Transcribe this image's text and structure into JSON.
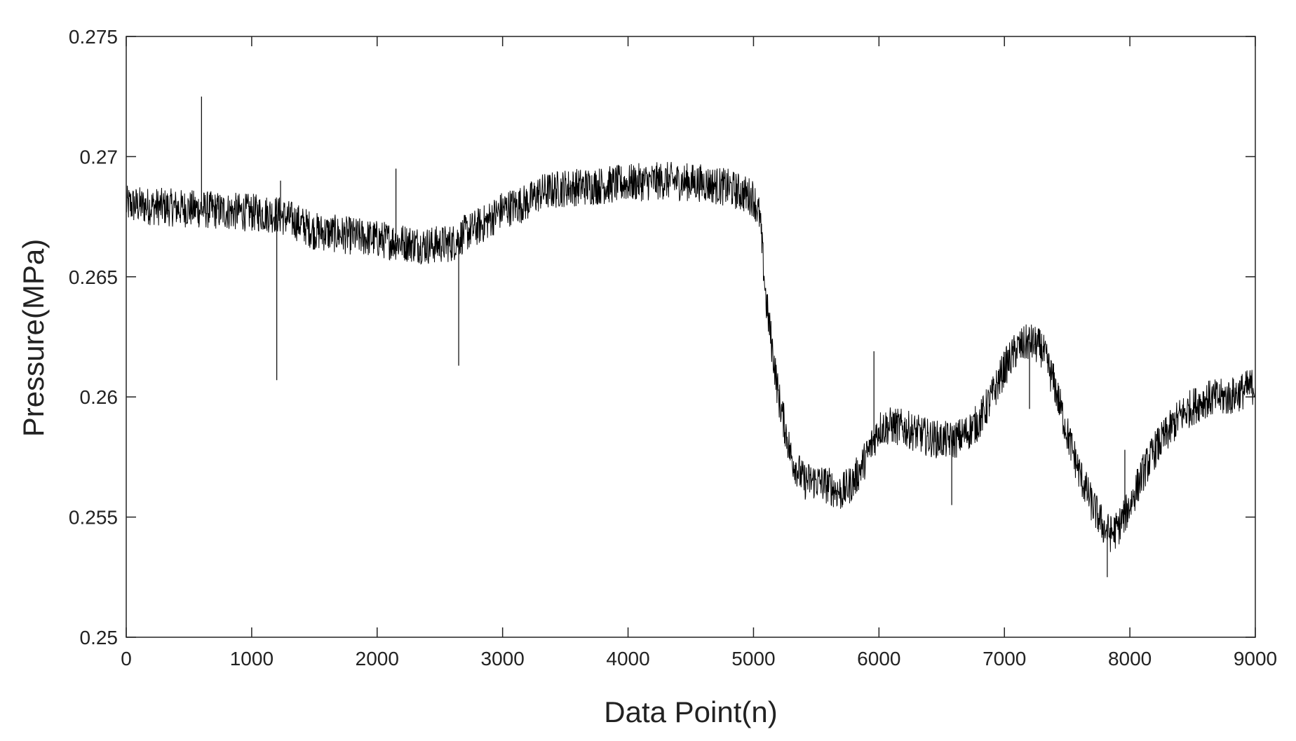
{
  "chart_data": {
    "type": "line",
    "title": "",
    "xlabel": "Data Point(n)",
    "ylabel": "Pressure(MPa)",
    "xlim": [
      0,
      9000
    ],
    "ylim": [
      0.25,
      0.275
    ],
    "x_ticks": [
      0,
      1000,
      2000,
      3000,
      4000,
      5000,
      6000,
      7000,
      8000,
      9000
    ],
    "x_tick_labels": [
      "0",
      "1000",
      "2000",
      "3000",
      "4000",
      "5000",
      "6000",
      "7000",
      "8000",
      "9000"
    ],
    "y_ticks": [
      0.25,
      0.255,
      0.26,
      0.265,
      0.27,
      0.275
    ],
    "y_tick_labels": [
      "0.25",
      "0.255",
      "0.26",
      "0.265",
      "0.27",
      "0.275"
    ],
    "grid": false,
    "legend": "none",
    "line_color": "#000000",
    "series": [
      {
        "x": [
          0,
          300,
          600,
          900,
          1200,
          1350,
          1500,
          1800,
          2100,
          2400,
          2600,
          2700,
          2850,
          3000,
          3200,
          3300,
          3500,
          3800,
          4000,
          4300,
          4600,
          4800,
          5000,
          5050,
          5100,
          5200,
          5300,
          5400,
          5500,
          5600,
          5700,
          5800,
          5900,
          6000,
          6100,
          6200,
          6300,
          6400,
          6500,
          6600,
          6700,
          6800,
          6900,
          7000,
          7100,
          7200,
          7300,
          7400,
          7500,
          7600,
          7700,
          7800,
          7850,
          7900,
          8000,
          8100,
          8200,
          8300,
          8400,
          8500,
          8600,
          8800,
          9000
        ],
        "y": [
          0.268,
          0.2679,
          0.2678,
          0.2677,
          0.2676,
          0.2673,
          0.2669,
          0.2667,
          0.2665,
          0.2663,
          0.2664,
          0.2668,
          0.2672,
          0.2678,
          0.2681,
          0.2685,
          0.2687,
          0.2688,
          0.2689,
          0.269,
          0.2689,
          0.2687,
          0.2683,
          0.2675,
          0.264,
          0.26,
          0.2575,
          0.2565,
          0.2565,
          0.2563,
          0.256,
          0.2565,
          0.2575,
          0.2587,
          0.2588,
          0.2587,
          0.2585,
          0.2583,
          0.2582,
          0.2582,
          0.2585,
          0.259,
          0.26,
          0.2612,
          0.262,
          0.2623,
          0.262,
          0.2605,
          0.2585,
          0.2568,
          0.2555,
          0.2545,
          0.2543,
          0.2545,
          0.2555,
          0.2568,
          0.2578,
          0.2585,
          0.2592,
          0.2596,
          0.2599,
          0.26,
          0.2605
        ]
      }
    ],
    "spikes": [
      {
        "x": 600,
        "y": 0.2725
      },
      {
        "x": 1200,
        "y": 0.2607
      },
      {
        "x": 1230,
        "y": 0.269
      },
      {
        "x": 2150,
        "y": 0.2695
      },
      {
        "x": 2650,
        "y": 0.2613
      },
      {
        "x": 5960,
        "y": 0.2619
      },
      {
        "x": 6580,
        "y": 0.2555
      },
      {
        "x": 7200,
        "y": 0.2595
      },
      {
        "x": 7820,
        "y": 0.2525
      },
      {
        "x": 7960,
        "y": 0.2578
      }
    ]
  }
}
